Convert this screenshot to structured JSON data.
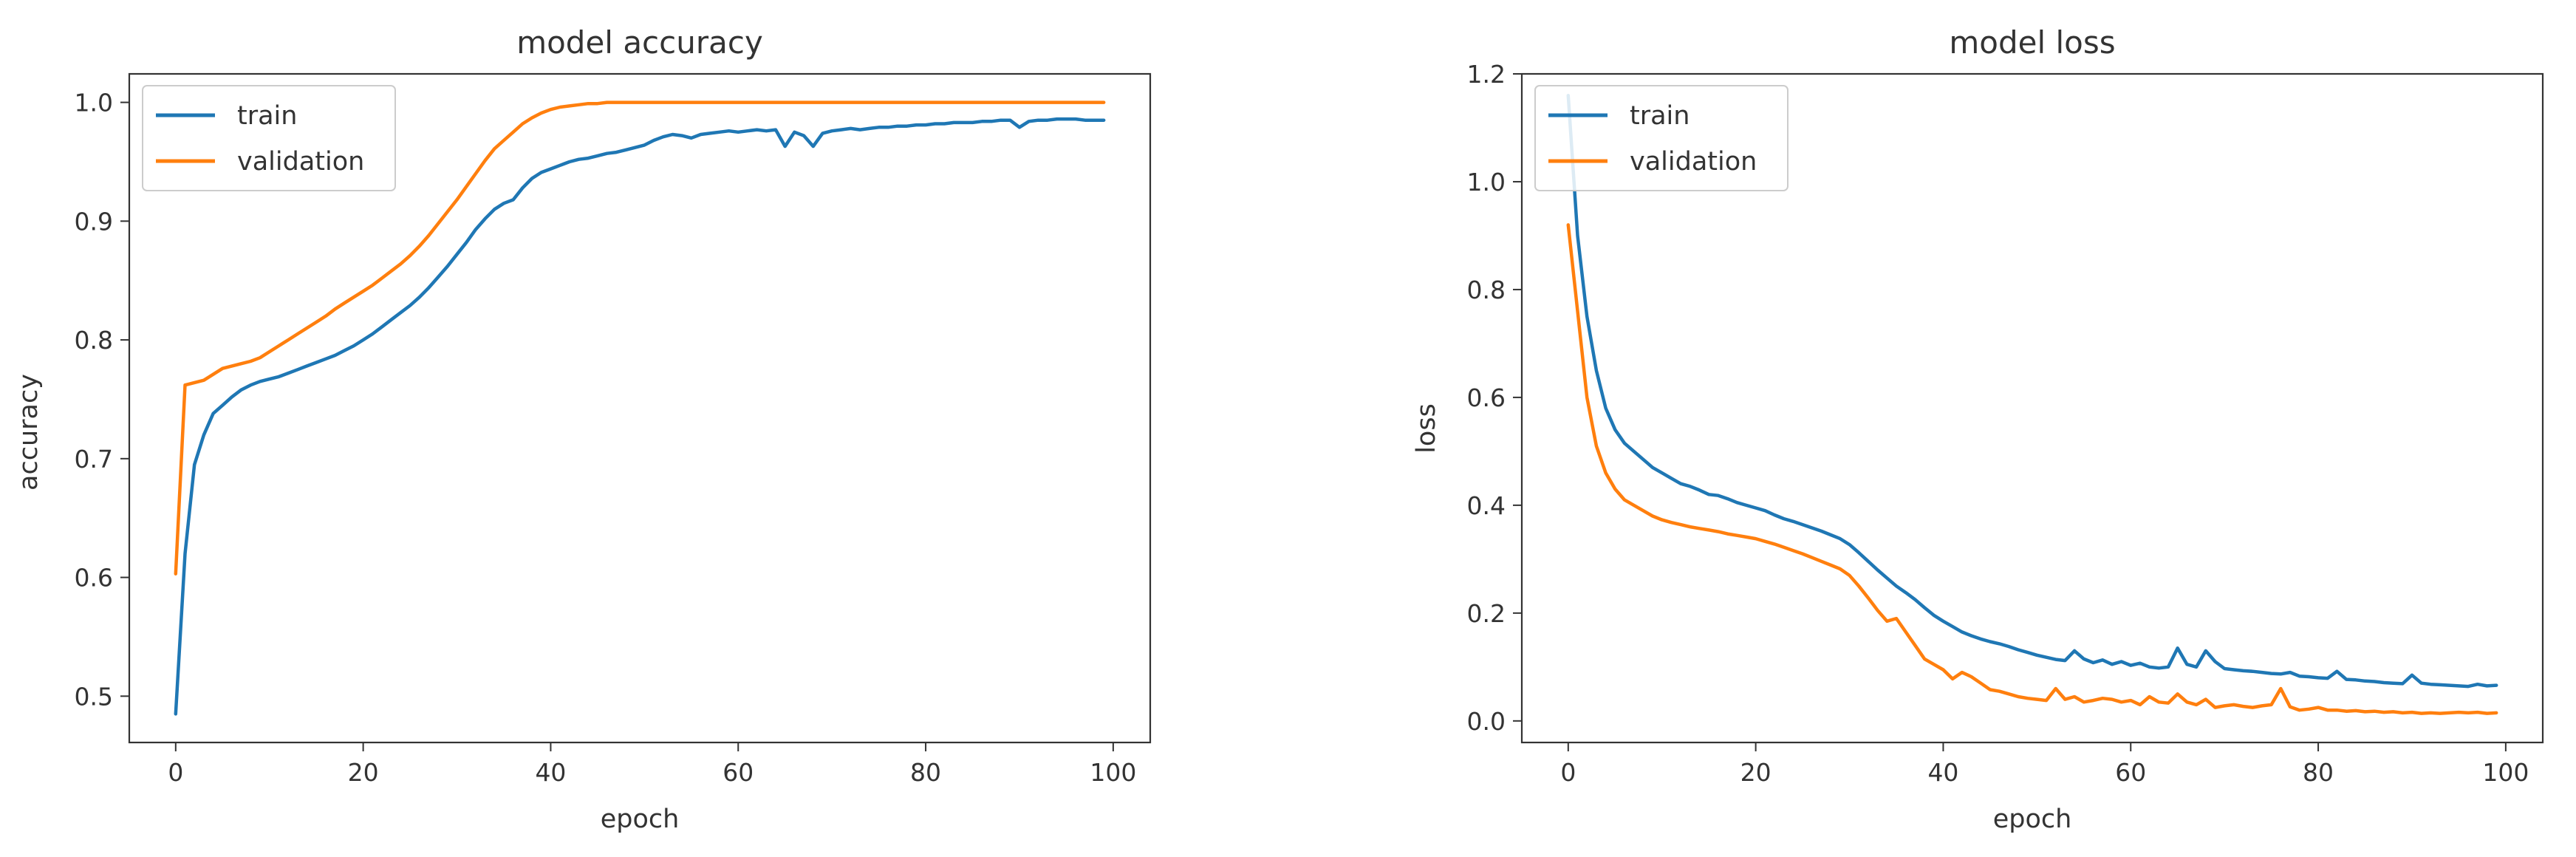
{
  "colors": {
    "train": "#1f77b4",
    "validation": "#ff7f0e",
    "axes": "#333333",
    "legend_border": "#cccccc",
    "background": "#ffffff"
  },
  "chart_data": [
    {
      "type": "line",
      "title": "model accuracy",
      "xlabel": "epoch",
      "ylabel": "accuracy",
      "xlim": [
        -4.95,
        103.95
      ],
      "ylim": [
        0.461,
        1.024
      ],
      "xticks": [
        0,
        20,
        40,
        60,
        80,
        100
      ],
      "yticks": [
        0.5,
        0.6,
        0.7,
        0.8,
        0.9,
        1.0
      ],
      "xtick_labels": [
        "0",
        "20",
        "40",
        "60",
        "80",
        "100"
      ],
      "ytick_labels": [
        "0.5",
        "0.6",
        "0.7",
        "0.8",
        "0.9",
        "1.0"
      ],
      "grid": false,
      "legend": "upper-left",
      "series": [
        {
          "name": "train",
          "color": "#1f77b4",
          "x": [
            0,
            1,
            2,
            3,
            4,
            5,
            6,
            7,
            8,
            9,
            10,
            11,
            12,
            13,
            14,
            15,
            16,
            17,
            18,
            19,
            20,
            21,
            22,
            23,
            24,
            25,
            26,
            27,
            28,
            29,
            30,
            31,
            32,
            33,
            34,
            35,
            36,
            37,
            38,
            39,
            40,
            41,
            42,
            43,
            44,
            45,
            46,
            47,
            48,
            49,
            50,
            51,
            52,
            53,
            54,
            55,
            56,
            57,
            58,
            59,
            60,
            61,
            62,
            63,
            64,
            65,
            66,
            67,
            68,
            69,
            70,
            71,
            72,
            73,
            74,
            75,
            76,
            77,
            78,
            79,
            80,
            81,
            82,
            83,
            84,
            85,
            86,
            87,
            88,
            89,
            90,
            91,
            92,
            93,
            94,
            95,
            96,
            97,
            98,
            99
          ],
          "values": [
            0.485,
            0.62,
            0.695,
            0.72,
            0.738,
            0.745,
            0.752,
            0.758,
            0.762,
            0.765,
            0.767,
            0.769,
            0.772,
            0.775,
            0.778,
            0.781,
            0.784,
            0.787,
            0.791,
            0.795,
            0.8,
            0.805,
            0.811,
            0.817,
            0.823,
            0.829,
            0.836,
            0.844,
            0.853,
            0.862,
            0.872,
            0.882,
            0.893,
            0.902,
            0.91,
            0.915,
            0.918,
            0.928,
            0.936,
            0.941,
            0.944,
            0.947,
            0.95,
            0.952,
            0.953,
            0.955,
            0.957,
            0.958,
            0.96,
            0.962,
            0.964,
            0.968,
            0.971,
            0.973,
            0.972,
            0.97,
            0.973,
            0.974,
            0.975,
            0.976,
            0.975,
            0.976,
            0.977,
            0.976,
            0.977,
            0.963,
            0.975,
            0.972,
            0.963,
            0.974,
            0.976,
            0.977,
            0.978,
            0.977,
            0.978,
            0.979,
            0.979,
            0.98,
            0.98,
            0.981,
            0.981,
            0.982,
            0.982,
            0.983,
            0.983,
            0.983,
            0.984,
            0.984,
            0.985,
            0.985,
            0.979,
            0.984,
            0.985,
            0.985,
            0.986,
            0.986,
            0.986,
            0.985,
            0.985,
            0.985
          ]
        },
        {
          "name": "validation",
          "color": "#ff7f0e",
          "x": [
            0,
            1,
            2,
            3,
            4,
            5,
            6,
            7,
            8,
            9,
            10,
            11,
            12,
            13,
            14,
            15,
            16,
            17,
            18,
            19,
            20,
            21,
            22,
            23,
            24,
            25,
            26,
            27,
            28,
            29,
            30,
            31,
            32,
            33,
            34,
            35,
            36,
            37,
            38,
            39,
            40,
            41,
            42,
            43,
            44,
            45,
            46,
            47,
            48,
            49,
            50,
            51,
            52,
            53,
            54,
            55,
            56,
            57,
            58,
            59,
            60,
            61,
            62,
            63,
            64,
            65,
            66,
            67,
            68,
            69,
            70,
            71,
            72,
            73,
            74,
            75,
            76,
            77,
            78,
            79,
            80,
            81,
            82,
            83,
            84,
            85,
            86,
            87,
            88,
            89,
            90,
            91,
            92,
            93,
            94,
            95,
            96,
            97,
            98,
            99
          ],
          "values": [
            0.603,
            0.762,
            0.764,
            0.766,
            0.771,
            0.776,
            0.778,
            0.78,
            0.782,
            0.785,
            0.79,
            0.795,
            0.8,
            0.805,
            0.81,
            0.815,
            0.82,
            0.826,
            0.831,
            0.836,
            0.841,
            0.846,
            0.852,
            0.858,
            0.864,
            0.871,
            0.879,
            0.888,
            0.898,
            0.908,
            0.918,
            0.929,
            0.94,
            0.951,
            0.961,
            0.968,
            0.975,
            0.982,
            0.987,
            0.991,
            0.994,
            0.996,
            0.997,
            0.998,
            0.999,
            0.999,
            1.0,
            1.0,
            1.0,
            1.0,
            1.0,
            1.0,
            1.0,
            1.0,
            1.0,
            1.0,
            1.0,
            1.0,
            1.0,
            1.0,
            1.0,
            1.0,
            1.0,
            1.0,
            1.0,
            1.0,
            1.0,
            1.0,
            1.0,
            1.0,
            1.0,
            1.0,
            1.0,
            1.0,
            1.0,
            1.0,
            1.0,
            1.0,
            1.0,
            1.0,
            1.0,
            1.0,
            1.0,
            1.0,
            1.0,
            1.0,
            1.0,
            1.0,
            1.0,
            1.0,
            1.0,
            1.0,
            1.0,
            1.0,
            1.0,
            1.0,
            1.0,
            1.0,
            1.0,
            1.0
          ]
        }
      ]
    },
    {
      "type": "line",
      "title": "model loss",
      "xlabel": "epoch",
      "ylabel": "loss",
      "xlim": [
        -4.95,
        103.95
      ],
      "ylim": [
        -0.04,
        1.2
      ],
      "xticks": [
        0,
        20,
        40,
        60,
        80,
        100
      ],
      "yticks": [
        0.0,
        0.2,
        0.4,
        0.6,
        0.8,
        1.0,
        1.2
      ],
      "xtick_labels": [
        "0",
        "20",
        "40",
        "60",
        "80",
        "100"
      ],
      "ytick_labels": [
        "0.0",
        "0.2",
        "0.4",
        "0.6",
        "0.8",
        "1.0",
        "1.2"
      ],
      "grid": false,
      "legend": "upper-left",
      "series": [
        {
          "name": "train",
          "color": "#1f77b4",
          "x": [
            0,
            1,
            2,
            3,
            4,
            5,
            6,
            7,
            8,
            9,
            10,
            11,
            12,
            13,
            14,
            15,
            16,
            17,
            18,
            19,
            20,
            21,
            22,
            23,
            24,
            25,
            26,
            27,
            28,
            29,
            30,
            31,
            32,
            33,
            34,
            35,
            36,
            37,
            38,
            39,
            40,
            41,
            42,
            43,
            44,
            45,
            46,
            47,
            48,
            49,
            50,
            51,
            52,
            53,
            54,
            55,
            56,
            57,
            58,
            59,
            60,
            61,
            62,
            63,
            64,
            65,
            66,
            67,
            68,
            69,
            70,
            71,
            72,
            73,
            74,
            75,
            76,
            77,
            78,
            79,
            80,
            81,
            82,
            83,
            84,
            85,
            86,
            87,
            88,
            89,
            90,
            91,
            92,
            93,
            94,
            95,
            96,
            97,
            98,
            99
          ],
          "values": [
            1.16,
            0.9,
            0.75,
            0.65,
            0.58,
            0.54,
            0.515,
            0.5,
            0.485,
            0.47,
            0.46,
            0.45,
            0.44,
            0.435,
            0.428,
            0.42,
            0.418,
            0.412,
            0.405,
            0.4,
            0.395,
            0.39,
            0.382,
            0.375,
            0.37,
            0.364,
            0.358,
            0.352,
            0.345,
            0.338,
            0.327,
            0.312,
            0.296,
            0.28,
            0.265,
            0.25,
            0.238,
            0.225,
            0.21,
            0.196,
            0.185,
            0.175,
            0.165,
            0.158,
            0.152,
            0.147,
            0.143,
            0.138,
            0.132,
            0.127,
            0.122,
            0.118,
            0.114,
            0.112,
            0.13,
            0.115,
            0.108,
            0.113,
            0.105,
            0.11,
            0.103,
            0.107,
            0.1,
            0.098,
            0.1,
            0.135,
            0.105,
            0.1,
            0.13,
            0.11,
            0.097,
            0.095,
            0.093,
            0.092,
            0.09,
            0.088,
            0.087,
            0.09,
            0.083,
            0.082,
            0.08,
            0.079,
            0.092,
            0.077,
            0.076,
            0.074,
            0.073,
            0.071,
            0.07,
            0.069,
            0.085,
            0.07,
            0.068,
            0.067,
            0.066,
            0.065,
            0.064,
            0.068,
            0.065,
            0.066
          ]
        },
        {
          "name": "validation",
          "color": "#ff7f0e",
          "x": [
            0,
            1,
            2,
            3,
            4,
            5,
            6,
            7,
            8,
            9,
            10,
            11,
            12,
            13,
            14,
            15,
            16,
            17,
            18,
            19,
            20,
            21,
            22,
            23,
            24,
            25,
            26,
            27,
            28,
            29,
            30,
            31,
            32,
            33,
            34,
            35,
            36,
            37,
            38,
            39,
            40,
            41,
            42,
            43,
            44,
            45,
            46,
            47,
            48,
            49,
            50,
            51,
            52,
            53,
            54,
            55,
            56,
            57,
            58,
            59,
            60,
            61,
            62,
            63,
            64,
            65,
            66,
            67,
            68,
            69,
            70,
            71,
            72,
            73,
            74,
            75,
            76,
            77,
            78,
            79,
            80,
            81,
            82,
            83,
            84,
            85,
            86,
            87,
            88,
            89,
            90,
            91,
            92,
            93,
            94,
            95,
            96,
            97,
            98,
            99
          ],
          "values": [
            0.92,
            0.76,
            0.6,
            0.51,
            0.46,
            0.43,
            0.41,
            0.4,
            0.39,
            0.38,
            0.373,
            0.368,
            0.364,
            0.36,
            0.357,
            0.354,
            0.351,
            0.347,
            0.344,
            0.341,
            0.338,
            0.333,
            0.328,
            0.322,
            0.316,
            0.31,
            0.303,
            0.296,
            0.289,
            0.282,
            0.27,
            0.25,
            0.228,
            0.205,
            0.185,
            0.19,
            0.165,
            0.14,
            0.115,
            0.105,
            0.095,
            0.078,
            0.09,
            0.082,
            0.07,
            0.058,
            0.055,
            0.05,
            0.045,
            0.042,
            0.04,
            0.038,
            0.06,
            0.04,
            0.045,
            0.035,
            0.038,
            0.042,
            0.04,
            0.035,
            0.038,
            0.03,
            0.045,
            0.035,
            0.033,
            0.05,
            0.035,
            0.03,
            0.04,
            0.025,
            0.028,
            0.03,
            0.027,
            0.025,
            0.028,
            0.03,
            0.06,
            0.026,
            0.02,
            0.022,
            0.025,
            0.02,
            0.02,
            0.018,
            0.019,
            0.017,
            0.018,
            0.016,
            0.017,
            0.015,
            0.016,
            0.014,
            0.015,
            0.014,
            0.015,
            0.016,
            0.015,
            0.016,
            0.014,
            0.015
          ]
        }
      ]
    }
  ]
}
